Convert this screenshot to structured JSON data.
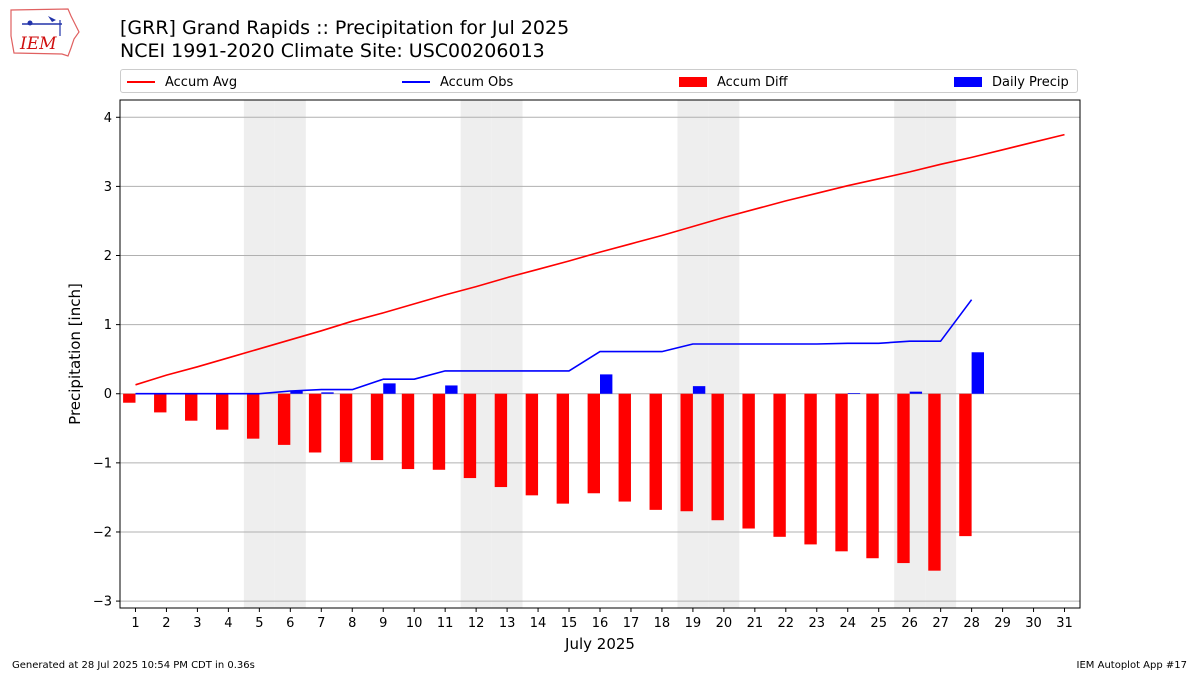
{
  "header": {
    "title_line1": "[GRR] Grand Rapids :: Precipitation for Jul 2025",
    "title_line2": "NCEI 1991-2020 Climate Site: USC00206013",
    "logo_text": "IEM"
  },
  "legend": {
    "accum_avg": "Accum Avg",
    "accum_obs": "Accum Obs",
    "accum_diff": "Accum Diff",
    "daily_precip": "Daily Precip"
  },
  "footer": {
    "generated": "Generated at 28 Jul 2025 10:54 PM CDT in 0.36s",
    "app": "IEM Autoplot App #17"
  },
  "colors": {
    "avg": "#ff0000",
    "obs": "#0000ff",
    "diff": "#ff0000",
    "daily": "#0000ff",
    "weekend_shade": "#eeeeee",
    "grid": "#b0b0b0"
  },
  "chart_data": {
    "type": "bar",
    "xlabel": "July 2025",
    "ylabel": "Precipitation [inch]",
    "ylim": [
      -3.1,
      4.25
    ],
    "xlim": [
      0.5,
      31.5
    ],
    "yticks": [
      -3,
      -2,
      -1,
      0,
      1,
      2,
      3,
      4
    ],
    "ytick_labels": [
      "−3",
      "−2",
      "−1",
      "0",
      "1",
      "2",
      "3",
      "4"
    ],
    "grid": "horizontal",
    "legend_placement": "top",
    "days": [
      1,
      2,
      3,
      4,
      5,
      6,
      7,
      8,
      9,
      10,
      11,
      12,
      13,
      14,
      15,
      16,
      17,
      18,
      19,
      20,
      21,
      22,
      23,
      24,
      25,
      26,
      27,
      28,
      29,
      30,
      31
    ],
    "weekend_days": [
      5,
      6,
      12,
      13,
      19,
      20,
      26,
      27
    ],
    "series": [
      {
        "name": "Accum Avg",
        "kind": "line",
        "x": [
          1,
          2,
          3,
          4,
          5,
          6,
          7,
          8,
          9,
          10,
          11,
          12,
          13,
          14,
          15,
          16,
          17,
          18,
          19,
          20,
          21,
          22,
          23,
          24,
          25,
          26,
          27,
          28,
          29,
          30,
          31
        ],
        "values": [
          0.13,
          0.27,
          0.39,
          0.52,
          0.65,
          0.78,
          0.91,
          1.05,
          1.17,
          1.3,
          1.43,
          1.55,
          1.68,
          1.8,
          1.92,
          2.05,
          2.17,
          2.29,
          2.42,
          2.55,
          2.67,
          2.79,
          2.9,
          3.01,
          3.11,
          3.21,
          3.32,
          3.42,
          3.53,
          3.64,
          3.75
        ]
      },
      {
        "name": "Accum Obs",
        "kind": "line",
        "x": [
          1,
          2,
          3,
          4,
          5,
          6,
          7,
          8,
          9,
          10,
          11,
          12,
          13,
          14,
          15,
          16,
          17,
          18,
          19,
          20,
          21,
          22,
          23,
          24,
          25,
          26,
          27,
          28
        ],
        "values": [
          0.0,
          0.0,
          0.0,
          0.0,
          0.0,
          0.04,
          0.06,
          0.06,
          0.21,
          0.21,
          0.33,
          0.33,
          0.33,
          0.33,
          0.33,
          0.61,
          0.61,
          0.61,
          0.72,
          0.72,
          0.72,
          0.72,
          0.72,
          0.73,
          0.73,
          0.76,
          0.76,
          1.36
        ]
      },
      {
        "name": "Accum Diff",
        "kind": "bar",
        "x": [
          1,
          2,
          3,
          4,
          5,
          6,
          7,
          8,
          9,
          10,
          11,
          12,
          13,
          14,
          15,
          16,
          17,
          18,
          19,
          20,
          21,
          22,
          23,
          24,
          25,
          26,
          27,
          28
        ],
        "values": [
          -0.13,
          -0.27,
          -0.39,
          -0.52,
          -0.65,
          -0.74,
          -0.85,
          -0.99,
          -0.96,
          -1.09,
          -1.1,
          -1.22,
          -1.35,
          -1.47,
          -1.59,
          -1.44,
          -1.56,
          -1.68,
          -1.7,
          -1.83,
          -1.95,
          -2.07,
          -2.18,
          -2.28,
          -2.38,
          -2.45,
          -2.56,
          -2.06
        ]
      },
      {
        "name": "Daily Precip",
        "kind": "bar",
        "x": [
          1,
          2,
          3,
          4,
          5,
          6,
          7,
          8,
          9,
          10,
          11,
          12,
          13,
          14,
          15,
          16,
          17,
          18,
          19,
          20,
          21,
          22,
          23,
          24,
          25,
          26,
          27,
          28
        ],
        "values": [
          0,
          0,
          0,
          0,
          0,
          0.04,
          0.02,
          0,
          0.15,
          0,
          0.12,
          0,
          0,
          0,
          0,
          0.28,
          0,
          0,
          0.11,
          0,
          0,
          0,
          0,
          0.01,
          0,
          0.03,
          0,
          0.6
        ]
      }
    ]
  }
}
